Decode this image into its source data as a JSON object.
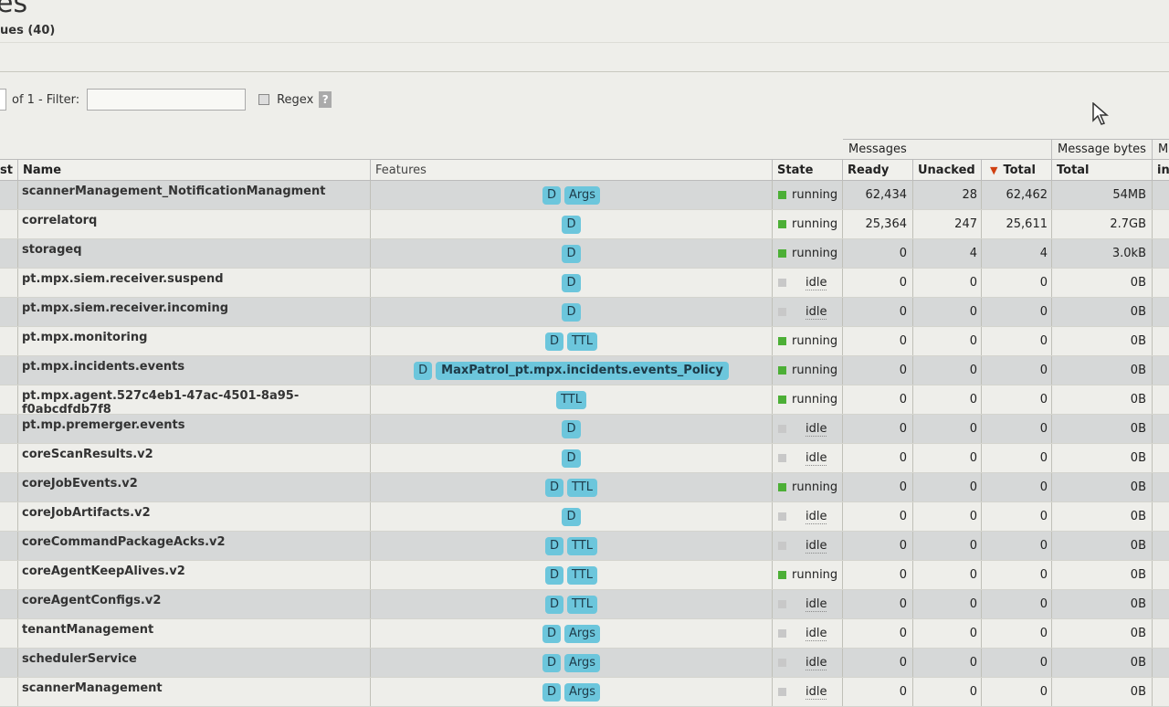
{
  "page": {
    "title": "es",
    "section": "ues (40)"
  },
  "pager": {
    "of_text": "of 1",
    "filter_label": "- Filter:",
    "filter_value": "",
    "regex_label": "Regex",
    "help_label": "?"
  },
  "table": {
    "group_headers": {
      "messages": "Messages",
      "message_bytes": "Message bytes",
      "extra": "M"
    },
    "columns": {
      "first": "st",
      "name": "Name",
      "features": "Features",
      "state": "State",
      "ready": "Ready",
      "unacked": "Unacked",
      "total": "Total",
      "bytes_total": "Total",
      "extra": "in"
    },
    "sort_arrow": "▼",
    "rows": [
      {
        "name": "scannerManagement_NotificationManagment",
        "features": [
          "D",
          "Args"
        ],
        "state": "running",
        "ready": "62,434",
        "unacked": "28",
        "total": "62,462",
        "bytes": "54MB"
      },
      {
        "name": "correlatorq",
        "features": [
          "D"
        ],
        "state": "running",
        "ready": "25,364",
        "unacked": "247",
        "total": "25,611",
        "bytes": "2.7GB"
      },
      {
        "name": "storageq",
        "features": [
          "D"
        ],
        "state": "running",
        "ready": "0",
        "unacked": "4",
        "total": "4",
        "bytes": "3.0kB"
      },
      {
        "name": "pt.mpx.siem.receiver.suspend",
        "features": [
          "D"
        ],
        "state": "idle",
        "ready": "0",
        "unacked": "0",
        "total": "0",
        "bytes": "0B"
      },
      {
        "name": "pt.mpx.siem.receiver.incoming",
        "features": [
          "D"
        ],
        "state": "idle",
        "ready": "0",
        "unacked": "0",
        "total": "0",
        "bytes": "0B"
      },
      {
        "name": "pt.mpx.monitoring",
        "features": [
          "D",
          "TTL"
        ],
        "state": "running",
        "ready": "0",
        "unacked": "0",
        "total": "0",
        "bytes": "0B"
      },
      {
        "name": "pt.mpx.incidents.events",
        "features": [
          "D",
          "MaxPatrol_pt.mpx.incidents.events_Policy"
        ],
        "state": "running",
        "ready": "0",
        "unacked": "0",
        "total": "0",
        "bytes": "0B"
      },
      {
        "name": "pt.mpx.agent.527c4eb1-47ac-4501-8a95-f0abcdfdb7f8",
        "features": [
          "TTL"
        ],
        "state": "running",
        "ready": "0",
        "unacked": "0",
        "total": "0",
        "bytes": "0B"
      },
      {
        "name": "pt.mp.premerger.events",
        "features": [
          "D"
        ],
        "state": "idle",
        "ready": "0",
        "unacked": "0",
        "total": "0",
        "bytes": "0B"
      },
      {
        "name": "coreScanResults.v2",
        "features": [
          "D"
        ],
        "state": "idle",
        "ready": "0",
        "unacked": "0",
        "total": "0",
        "bytes": "0B"
      },
      {
        "name": "coreJobEvents.v2",
        "features": [
          "D",
          "TTL"
        ],
        "state": "running",
        "ready": "0",
        "unacked": "0",
        "total": "0",
        "bytes": "0B"
      },
      {
        "name": "coreJobArtifacts.v2",
        "features": [
          "D"
        ],
        "state": "idle",
        "ready": "0",
        "unacked": "0",
        "total": "0",
        "bytes": "0B"
      },
      {
        "name": "coreCommandPackageAcks.v2",
        "features": [
          "D",
          "TTL"
        ],
        "state": "idle",
        "ready": "0",
        "unacked": "0",
        "total": "0",
        "bytes": "0B"
      },
      {
        "name": "coreAgentKeepAlives.v2",
        "features": [
          "D",
          "TTL"
        ],
        "state": "running",
        "ready": "0",
        "unacked": "0",
        "total": "0",
        "bytes": "0B"
      },
      {
        "name": "coreAgentConfigs.v2",
        "features": [
          "D",
          "TTL"
        ],
        "state": "idle",
        "ready": "0",
        "unacked": "0",
        "total": "0",
        "bytes": "0B"
      },
      {
        "name": "tenantManagement",
        "features": [
          "D",
          "Args"
        ],
        "state": "idle",
        "ready": "0",
        "unacked": "0",
        "total": "0",
        "bytes": "0B"
      },
      {
        "name": "schedulerService",
        "features": [
          "D",
          "Args"
        ],
        "state": "idle",
        "ready": "0",
        "unacked": "0",
        "total": "0",
        "bytes": "0B"
      },
      {
        "name": "scannerManagement",
        "features": [
          "D",
          "Args"
        ],
        "state": "idle",
        "ready": "0",
        "unacked": "0",
        "total": "0",
        "bytes": "0B"
      }
    ]
  },
  "colors": {
    "running": "#4caf36",
    "idle": "#c8c8c8",
    "badge": "#6cc6dc",
    "sort_arrow": "#d04010"
  }
}
